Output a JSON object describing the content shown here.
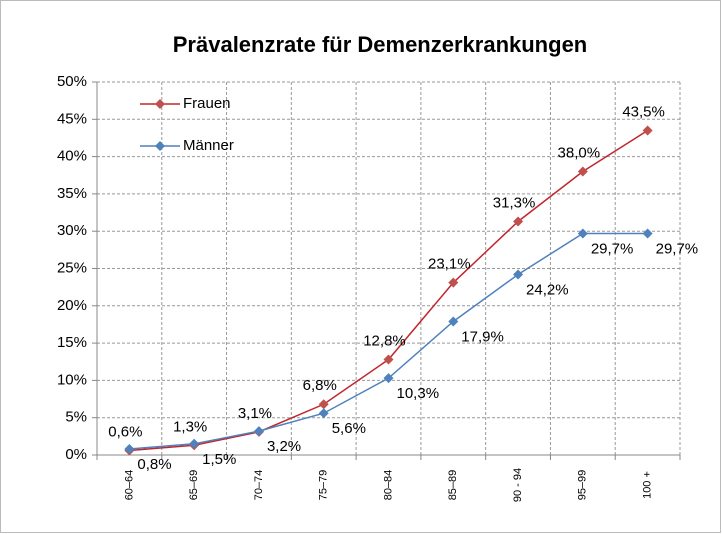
{
  "chart_data": {
    "type": "line",
    "title": "Prävalenzrate für Demenzerkrankungen",
    "categories": [
      "60–64",
      "65–69",
      "70–74",
      "75–79",
      "80–84",
      "85–89",
      "90 - 94",
      "95–99",
      "100 +"
    ],
    "series": [
      {
        "name": "Frauen",
        "color": "#c0272d",
        "marker_color": "#c0504d",
        "values": [
          0.6,
          1.3,
          3.1,
          6.8,
          12.8,
          23.1,
          31.3,
          38.0,
          43.5
        ],
        "value_labels": [
          "0,6%",
          "1,3%",
          "3,1%",
          "6,8%",
          "12,8%",
          "23,1%",
          "31,3%",
          "38,0%",
          "43,5%"
        ]
      },
      {
        "name": "Männer",
        "color": "#4f81bd",
        "marker_color": "#4f81bd",
        "values": [
          0.8,
          1.5,
          3.2,
          5.6,
          10.3,
          17.9,
          24.2,
          29.7,
          29.7
        ],
        "value_labels": [
          "0,8%",
          "1,5%",
          "3,2%",
          "5,6%",
          "10,3%",
          "17,9%",
          "24,2%",
          "29,7%",
          "29,7%"
        ]
      }
    ],
    "ylim": [
      0,
      50
    ],
    "yticks": [
      {
        "value": 0,
        "label": "0%"
      },
      {
        "value": 5,
        "label": "5%"
      },
      {
        "value": 10,
        "label": "10%"
      },
      {
        "value": 15,
        "label": "15%"
      },
      {
        "value": 20,
        "label": "20%"
      },
      {
        "value": 25,
        "label": "25%"
      },
      {
        "value": 30,
        "label": "30%"
      },
      {
        "value": 35,
        "label": "35%"
      },
      {
        "value": 40,
        "label": "40%"
      },
      {
        "value": 45,
        "label": "45%"
      },
      {
        "value": 50,
        "label": "50%"
      }
    ],
    "grid": true,
    "legend": "upper left"
  }
}
